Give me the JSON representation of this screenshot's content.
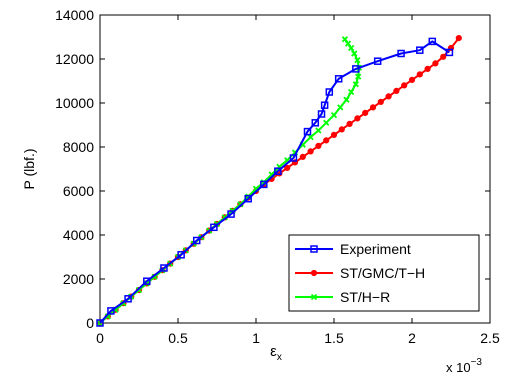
{
  "chart_data": {
    "type": "line",
    "xlabel": "ε",
    "xlabel_sub": "x",
    "x_multiplier": "x 10",
    "x_multiplier_exp": "−3",
    "ylabel": "P (lbf.)",
    "xlim": [
      0,
      2.5
    ],
    "ylim": [
      0,
      14000
    ],
    "x_ticks": [
      0,
      0.5,
      1,
      1.5,
      2,
      2.5
    ],
    "x_tick_labels": [
      "0",
      "0.5",
      "1",
      "1.5",
      "2",
      "2.5"
    ],
    "y_ticks": [
      0,
      2000,
      4000,
      6000,
      8000,
      10000,
      12000,
      14000
    ],
    "y_tick_labels": [
      "0",
      "2000",
      "4000",
      "6000",
      "8000",
      "10000",
      "12000",
      "14000"
    ],
    "grid": false,
    "legend_position": "bottom-right",
    "series": [
      {
        "name": "Experiment",
        "color": "#0000ff",
        "marker": "square",
        "x": [
          0.0,
          0.07,
          0.18,
          0.3,
          0.41,
          0.52,
          0.62,
          0.73,
          0.84,
          0.95,
          1.05,
          1.14,
          1.24,
          1.33,
          1.38,
          1.42,
          1.44,
          1.47,
          1.53,
          1.64,
          1.78,
          1.93,
          2.05,
          2.13,
          2.24
        ],
        "y": [
          0,
          550,
          1100,
          1900,
          2500,
          3100,
          3750,
          4350,
          4950,
          5650,
          6300,
          6900,
          7500,
          8700,
          9100,
          9500,
          9900,
          10500,
          11100,
          11550,
          11900,
          12250,
          12400,
          12800,
          12300
        ]
      },
      {
        "name": "ST/GMC/T−H",
        "color": "#ff0000",
        "marker": "circle",
        "x": [
          0.0,
          0.05,
          0.1,
          0.15,
          0.2,
          0.25,
          0.3,
          0.35,
          0.4,
          0.45,
          0.5,
          0.55,
          0.6,
          0.65,
          0.7,
          0.75,
          0.8,
          0.85,
          0.9,
          0.95,
          1.0,
          1.05,
          1.1,
          1.15,
          1.2,
          1.25,
          1.3,
          1.35,
          1.4,
          1.45,
          1.5,
          1.55,
          1.6,
          1.65,
          1.7,
          1.75,
          1.8,
          1.85,
          1.9,
          1.95,
          2.0,
          2.05,
          2.1,
          2.15,
          2.2,
          2.25,
          2.3
        ],
        "y": [
          0,
          300,
          600,
          900,
          1200,
          1500,
          1800,
          2100,
          2400,
          2700,
          3000,
          3300,
          3600,
          3900,
          4200,
          4500,
          4800,
          5100,
          5400,
          5700,
          6000,
          6300,
          6550,
          6800,
          7050,
          7300,
          7550,
          7800,
          8050,
          8300,
          8550,
          8800,
          9050,
          9300,
          9550,
          9800,
          10050,
          10300,
          10550,
          10800,
          11050,
          11300,
          11550,
          11800,
          12100,
          12500,
          12950
        ]
      },
      {
        "name": "ST/H−R",
        "color": "#00ff00",
        "marker": "x",
        "x": [
          0.0,
          0.05,
          0.1,
          0.15,
          0.2,
          0.25,
          0.3,
          0.35,
          0.4,
          0.45,
          0.5,
          0.55,
          0.6,
          0.65,
          0.7,
          0.75,
          0.8,
          0.85,
          0.9,
          0.95,
          1.0,
          1.05,
          1.1,
          1.15,
          1.2,
          1.25,
          1.3,
          1.35,
          1.4,
          1.45,
          1.5,
          1.54,
          1.58,
          1.61,
          1.64,
          1.655,
          1.66,
          1.65,
          1.63,
          1.61,
          1.59,
          1.57
        ],
        "y": [
          0,
          300,
          600,
          900,
          1200,
          1500,
          1800,
          2100,
          2400,
          2700,
          3000,
          3300,
          3600,
          3900,
          4200,
          4500,
          4800,
          5100,
          5400,
          5750,
          6100,
          6400,
          6750,
          7100,
          7400,
          7750,
          8100,
          8450,
          8750,
          9100,
          9450,
          9800,
          10150,
          10500,
          10850,
          11200,
          11600,
          11950,
          12250,
          12500,
          12700,
          12900
        ]
      }
    ]
  }
}
